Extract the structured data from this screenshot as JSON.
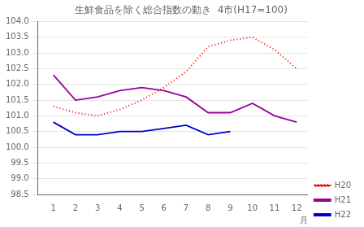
{
  "chart_data": {
    "type": "line",
    "title": "生鮮食品を除く総合指数の動き  4市(H17=100)",
    "x_label": "月",
    "x": [
      1,
      2,
      3,
      4,
      5,
      6,
      7,
      8,
      9,
      10,
      11,
      12
    ],
    "series": [
      {
        "name": "H20",
        "color": "#ff0000",
        "line_style": "dotted",
        "values": [
          101.3,
          101.1,
          101.0,
          101.2,
          101.5,
          101.9,
          102.4,
          103.2,
          103.4,
          103.5,
          103.1,
          102.5
        ]
      },
      {
        "name": "H21",
        "color": "#990099",
        "line_style": "solid",
        "values": [
          102.3,
          101.5,
          101.6,
          101.8,
          101.9,
          101.8,
          101.6,
          101.1,
          101.1,
          101.4,
          101.0,
          100.8
        ]
      },
      {
        "name": "H22",
        "color": "#0000cc",
        "line_style": "solid",
        "values": [
          100.8,
          100.4,
          100.4,
          100.5,
          100.5,
          100.6,
          100.7,
          100.4,
          100.5,
          null,
          null,
          null
        ]
      }
    ],
    "xlim": [
      0.3,
      12.5
    ],
    "xticks": [
      1,
      2,
      3,
      4,
      5,
      6,
      7,
      8,
      9,
      10,
      11,
      12
    ],
    "ylim": [
      98.5,
      104.0
    ],
    "yticks": [
      98.5,
      {
        "value": 99,
        "label": "99.0"
      },
      99.5,
      {
        "value": 100,
        "label": "100.0"
      },
      100.5,
      {
        "value": 101,
        "label": "101.0"
      },
      101.5,
      {
        "value": 102,
        "label": "102.0"
      },
      102.5,
      {
        "value": 103,
        "label": "103.0"
      },
      103.5,
      {
        "value": 104,
        "label": "104.0"
      }
    ],
    "grid": "y",
    "legend": "lower right"
  }
}
